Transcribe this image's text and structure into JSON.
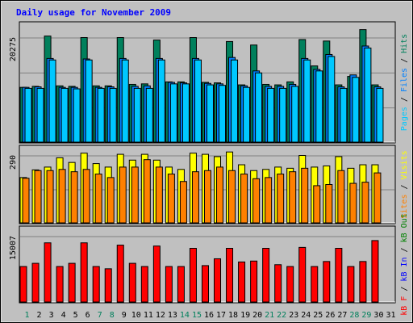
{
  "title": "Daily usage for November 2009",
  "colors": {
    "background": "#c0c0c0",
    "panel": "#c0c0c0",
    "title": "#0000ff",
    "hits": "#00805c",
    "files": "#0080ff",
    "pages": "#00c8ff",
    "visits": "#ffff00",
    "sites": "#ff8000",
    "kbin": "#ff0000",
    "weekend_day": "#00805c",
    "weekday": "#000000"
  },
  "panels": {
    "top": {
      "max_label": "20275",
      "axis_labels": [
        {
          "text": "Pages",
          "color": "#00c8ff"
        },
        {
          "text": " / ",
          "color": "#000000"
        },
        {
          "text": "Files",
          "color": "#0080ff"
        },
        {
          "text": " / ",
          "color": "#000000"
        },
        {
          "text": "Hits",
          "color": "#00805c"
        }
      ]
    },
    "middle": {
      "max_label": "290",
      "axis_labels": [
        {
          "text": "Sites",
          "color": "#ff8000"
        },
        {
          "text": " / ",
          "color": "#000000"
        },
        {
          "text": "Visits",
          "color": "#ffff00"
        }
      ]
    },
    "bottom": {
      "max_label": "15007",
      "axis_labels": [
        {
          "text": "kB F",
          "color": "#ff0000"
        },
        {
          "text": " / ",
          "color": "#000000"
        },
        {
          "text": "kB In",
          "color": "#0000ff"
        },
        {
          "text": " / ",
          "color": "#000000"
        },
        {
          "text": "kB Out",
          "color": "#008000"
        }
      ]
    }
  },
  "chart_data": {
    "type": "bar",
    "title": "Daily usage for November 2009",
    "categories": [
      "1",
      "2",
      "3",
      "4",
      "5",
      "6",
      "7",
      "8",
      "9",
      "10",
      "11",
      "12",
      "13",
      "14",
      "15",
      "16",
      "17",
      "18",
      "19",
      "20",
      "21",
      "22",
      "23",
      "24",
      "25",
      "26",
      "27",
      "28",
      "29",
      "30",
      "31"
    ],
    "weekend_days": [
      "1",
      "7",
      "8",
      "14",
      "15",
      "21",
      "22",
      "28",
      "29"
    ],
    "panels": [
      {
        "name": "hits-files-pages",
        "max_label": "20275",
        "ylim": [
          0,
          24000
        ],
        "series": [
          {
            "name": "Hits",
            "values": [
              11000,
              11200,
              21300,
              11300,
              11200,
              21000,
              11300,
              11300,
              21000,
              11600,
              11700,
              20500,
              12100,
              12100,
              21000,
              12000,
              11900,
              20200,
              11500,
              19500,
              11600,
              11500,
              12100,
              20600,
              15300,
              20300,
              11500,
              13200,
              22600,
              11500,
              0
            ]
          },
          {
            "name": "Files",
            "values": [
              11000,
              11100,
              16800,
              11000,
              11000,
              16700,
              11000,
              11100,
              16800,
              11200,
              11300,
              16800,
              12000,
              11900,
              16800,
              11800,
              11700,
              17000,
              11300,
              14300,
              11200,
              11200,
              11600,
              16800,
              14600,
              17600,
              11100,
              13500,
              19300,
              11100,
              0
            ]
          },
          {
            "name": "Pages",
            "values": [
              10800,
              10800,
              16500,
              10800,
              10700,
              16500,
              10800,
              10800,
              16500,
              10800,
              10800,
              16500,
              11700,
              11700,
              16500,
              11500,
              11400,
              16500,
              11000,
              13900,
              10800,
              10800,
              11200,
              16500,
              14300,
              17200,
              10800,
              13000,
              18900,
              10800,
              0
            ]
          }
        ]
      },
      {
        "name": "visits-sites",
        "max_label": "290",
        "ylim": [
          0,
          330
        ],
        "series": [
          {
            "name": "Visits",
            "values": [
              195,
              228,
              240,
              280,
              260,
              300,
              255,
              240,
              295,
              270,
              295,
              270,
              240,
              230,
              300,
              295,
              285,
              305,
              250,
              225,
              230,
              240,
              235,
              290,
              240,
              245,
              285,
              235,
              250,
              250,
              0
            ]
          },
          {
            "name": "Sites",
            "values": [
              192,
              225,
              225,
              230,
              220,
              230,
              210,
              195,
              240,
              240,
              272,
              240,
              210,
              178,
              220,
              225,
              240,
              225,
              210,
              190,
              195,
              210,
              220,
              235,
              160,
              165,
              225,
              170,
              175,
              215,
              0
            ]
          }
        ]
      },
      {
        "name": "kbytes",
        "max_label": "15007",
        "ylim": [
          0,
          16500
        ],
        "series": [
          {
            "name": "kB F",
            "values": [
              7800,
              8500,
              13000,
              7800,
              8500,
              13000,
              7800,
              7300,
              12500,
              8500,
              7800,
              12300,
              7800,
              7800,
              11800,
              8000,
              9500,
              11800,
              8800,
              9000,
              11800,
              8200,
              7800,
              12000,
              7800,
              8900,
              11800,
              7800,
              8900,
              13500,
              0
            ]
          }
        ]
      }
    ]
  }
}
